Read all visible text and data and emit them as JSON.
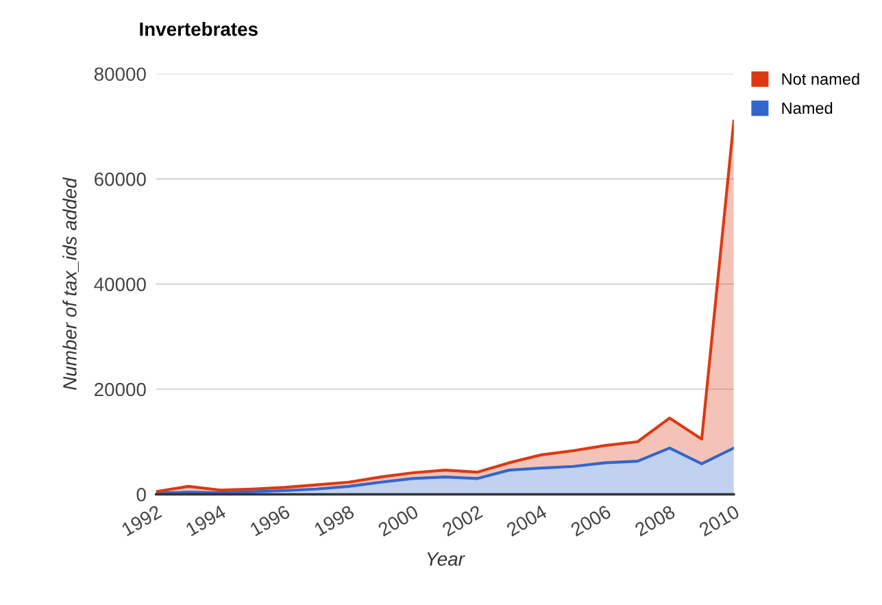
{
  "chart_data": {
    "type": "area",
    "stacked": true,
    "title": "Invertebrates",
    "xlabel": "Year",
    "ylabel": "Number of tax_ids added",
    "x": [
      1992,
      1993,
      1994,
      1995,
      1996,
      1997,
      1998,
      1999,
      2000,
      2001,
      2002,
      2003,
      2004,
      2005,
      2006,
      2007,
      2008,
      2009,
      2010
    ],
    "series": [
      {
        "name": "Named",
        "color": "#3366cc",
        "values": [
          200,
          400,
          300,
          500,
          700,
          1000,
          1500,
          2300,
          3000,
          3300,
          3000,
          4600,
          5000,
          5300,
          6000,
          6300,
          8800,
          5800,
          8800
        ]
      },
      {
        "name": "Not named",
        "color": "#dc3912",
        "values": [
          300,
          1100,
          500,
          500,
          600,
          800,
          800,
          1000,
          1100,
          1300,
          1200,
          1400,
          2500,
          3000,
          3300,
          3700,
          5700,
          4700,
          62200
        ]
      }
    ],
    "xlim": [
      1992,
      2010
    ],
    "xticks": [
      1992,
      1994,
      1996,
      1998,
      2000,
      2002,
      2004,
      2006,
      2008,
      2010
    ],
    "ylim": [
      0,
      80000
    ],
    "yticks": [
      0,
      20000,
      40000,
      60000,
      80000
    ],
    "grid": "y",
    "legend": "top right"
  }
}
